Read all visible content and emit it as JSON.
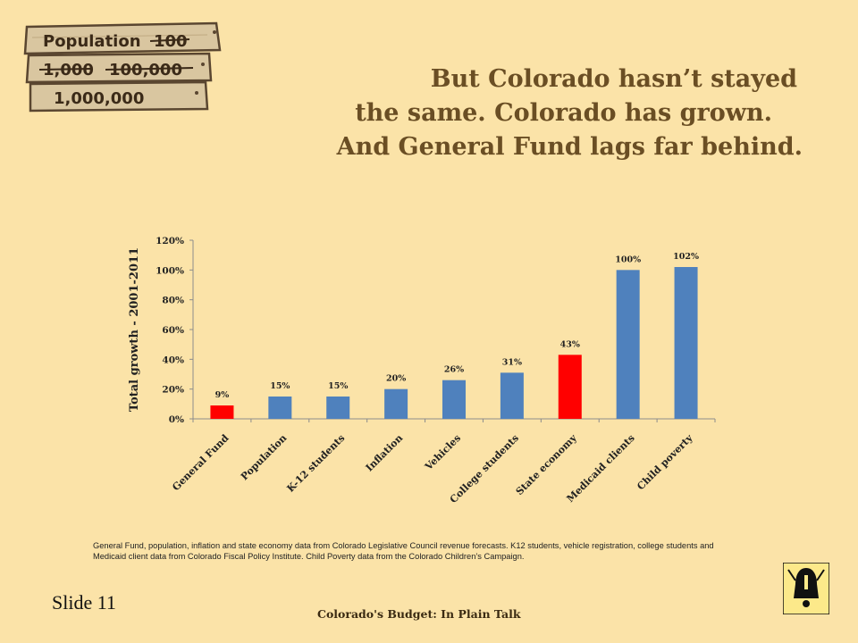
{
  "sign": {
    "lines": [
      "Population",
      "100",
      "1,000",
      "100,000",
      "1,000,000"
    ]
  },
  "headline": {
    "line1": "But Colorado hasn’t stayed",
    "line2": "the same. Colorado has grown.",
    "line3": "And General Fund lags far behind."
  },
  "chart_data": {
    "type": "bar",
    "ylabel": "Total growth - 2001-2011",
    "ylim": [
      0,
      120
    ],
    "yticks": [
      "0%",
      "20%",
      "40%",
      "60%",
      "80%",
      "100%",
      "120%"
    ],
    "categories": [
      "General Fund",
      "Population",
      "K-12 students",
      "Inflation",
      "Vehicles",
      "College students",
      "State economy",
      "Medicaid clients",
      "Child poverty"
    ],
    "values": [
      9,
      15,
      15,
      20,
      26,
      31,
      43,
      100,
      102
    ],
    "data_labels": [
      "9%",
      "15%",
      "15%",
      "20%",
      "26%",
      "31%",
      "43%",
      "100%",
      "102%"
    ],
    "colors": [
      "#ff0000",
      "#4f81bd",
      "#4f81bd",
      "#4f81bd",
      "#4f81bd",
      "#4f81bd",
      "#ff0000",
      "#4f81bd",
      "#4f81bd"
    ],
    "grid": false
  },
  "source_note": "General Fund, population, inflation and state economy data from Colorado Legislative Council revenue forecasts. K12 students, vehicle registration, college students and Medicaid client data from Colorado Fiscal Policy Institute. Child Poverty data from the Colorado Children’s Campaign.",
  "slide_number": "Slide 11",
  "footer": "Colorado's Budget: In Plain Talk",
  "logo": {
    "icon": "bell-icon",
    "colors": {
      "background": "#fce98a",
      "mark": "#111111"
    }
  }
}
